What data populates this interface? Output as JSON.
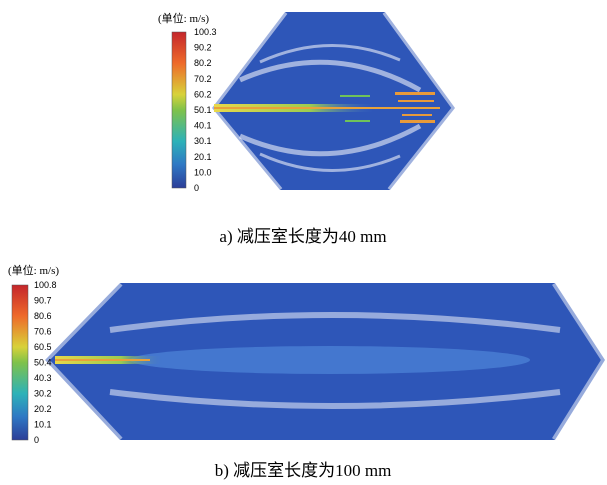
{
  "panels": [
    {
      "unit_label": "(单位: m/s)",
      "colorbar_ticks": [
        "100.3",
        "90.2",
        "80.2",
        "70.2",
        "60.2",
        "50.1",
        "40.1",
        "30.1",
        "20.1",
        "10.0",
        "0"
      ],
      "caption": "a)  减压室长度为40 mm"
    },
    {
      "unit_label": "(单位: m/s)",
      "colorbar_ticks": [
        "100.8",
        "90.7",
        "80.6",
        "70.6",
        "60.5",
        "50.4",
        "40.3",
        "30.2",
        "20.2",
        "10.1",
        "0"
      ],
      "caption": "b)  减压室长度为100 mm"
    }
  ]
}
